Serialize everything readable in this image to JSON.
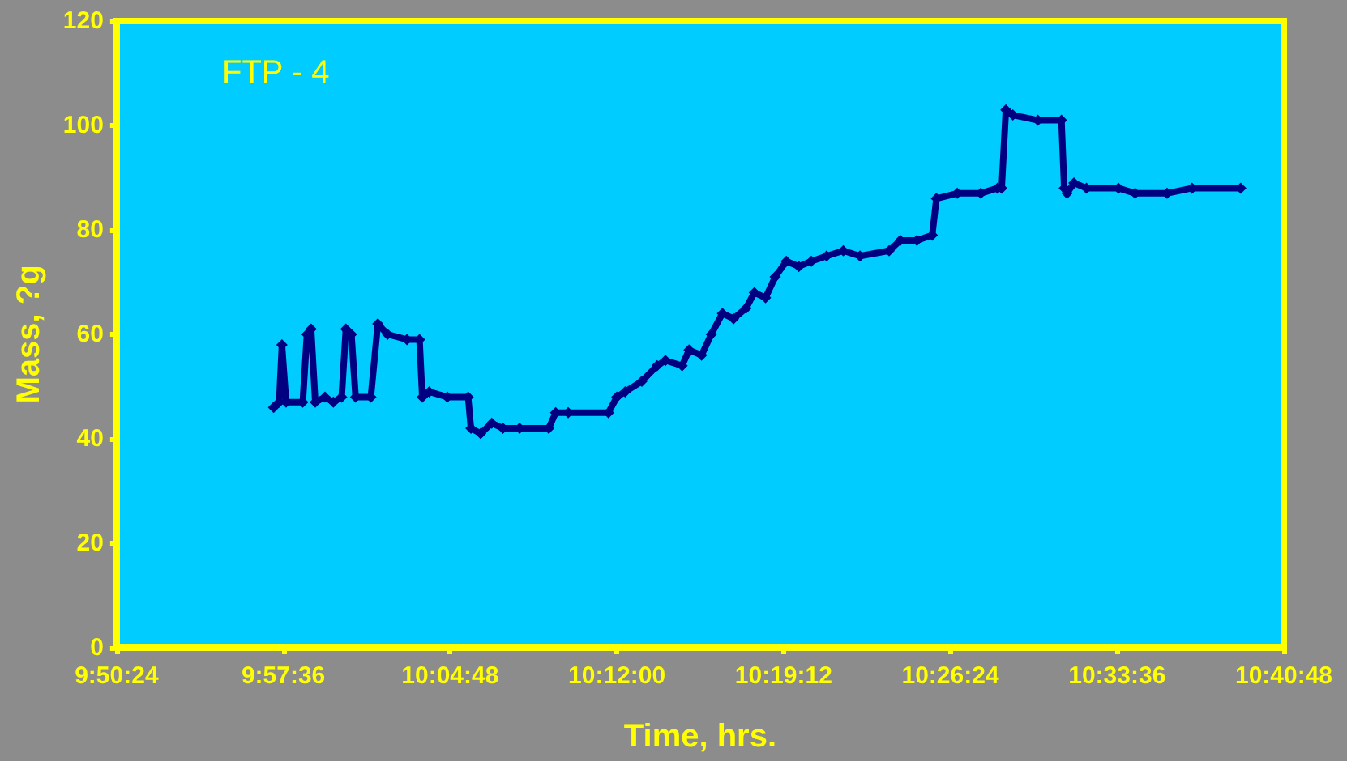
{
  "chart_data": {
    "type": "line",
    "title": "FTP - 4",
    "xlabel": "Time, hrs.",
    "ylabel": "Mass, ?g",
    "x": [
      9.953,
      9.957,
      9.959,
      9.962,
      9.974,
      9.977,
      9.98,
      9.983,
      9.99,
      9.996,
      10.002,
      10.005,
      10.009,
      10.012,
      10.023,
      10.028,
      10.035,
      10.049,
      10.058,
      10.06,
      10.065,
      10.078,
      10.093,
      10.095,
      10.102,
      10.11,
      10.118,
      10.13,
      10.151,
      10.156,
      10.165,
      10.194,
      10.2,
      10.206,
      10.218,
      10.229,
      10.235,
      10.247,
      10.252,
      10.261,
      10.268,
      10.276,
      10.284,
      10.293,
      10.299,
      10.307,
      10.314,
      10.322,
      10.331,
      10.34,
      10.351,
      10.363,
      10.375,
      10.396,
      10.404,
      10.416,
      10.427,
      10.43,
      10.445,
      10.462,
      10.474,
      10.477,
      10.48,
      10.485,
      10.503,
      10.52,
      10.522,
      10.524,
      10.529,
      10.538,
      10.561,
      10.573,
      10.596,
      10.614,
      10.649
    ],
    "series": [
      {
        "color": "#000080",
        "values": [
          46,
          47,
          58,
          47,
          47,
          60,
          61,
          47,
          48,
          47,
          48,
          61,
          60,
          48,
          48,
          62,
          60,
          59,
          59,
          48,
          49,
          48,
          48,
          42,
          41,
          43,
          42,
          42,
          42,
          45,
          45,
          45,
          48,
          49,
          51,
          54,
          55,
          54,
          57,
          56,
          60,
          64,
          63,
          65,
          68,
          67,
          71,
          74,
          73,
          74,
          75,
          76,
          75,
          76,
          78,
          78,
          79,
          86,
          87,
          87,
          88,
          88,
          103,
          102,
          101,
          101,
          88,
          87,
          89,
          88,
          88,
          87,
          87,
          88,
          88
        ]
      }
    ],
    "xlim": [
      9.84,
      10.68
    ],
    "xticks": [
      {
        "value": 9.84,
        "label": "9:50:24"
      },
      {
        "value": 9.96,
        "label": "9:57:36"
      },
      {
        "value": 10.08,
        "label": "10:04:48"
      },
      {
        "value": 10.2,
        "label": "10:12:00"
      },
      {
        "value": 10.32,
        "label": "10:19:12"
      },
      {
        "value": 10.44,
        "label": "10:26:24"
      },
      {
        "value": 10.56,
        "label": "10:33:36"
      },
      {
        "value": 10.68,
        "label": "10:40:48"
      }
    ],
    "ylim": [
      0,
      120
    ],
    "yticks": [
      0,
      20,
      40,
      60,
      80,
      100,
      120
    ],
    "marker": "diamond",
    "line_style": "solid"
  }
}
